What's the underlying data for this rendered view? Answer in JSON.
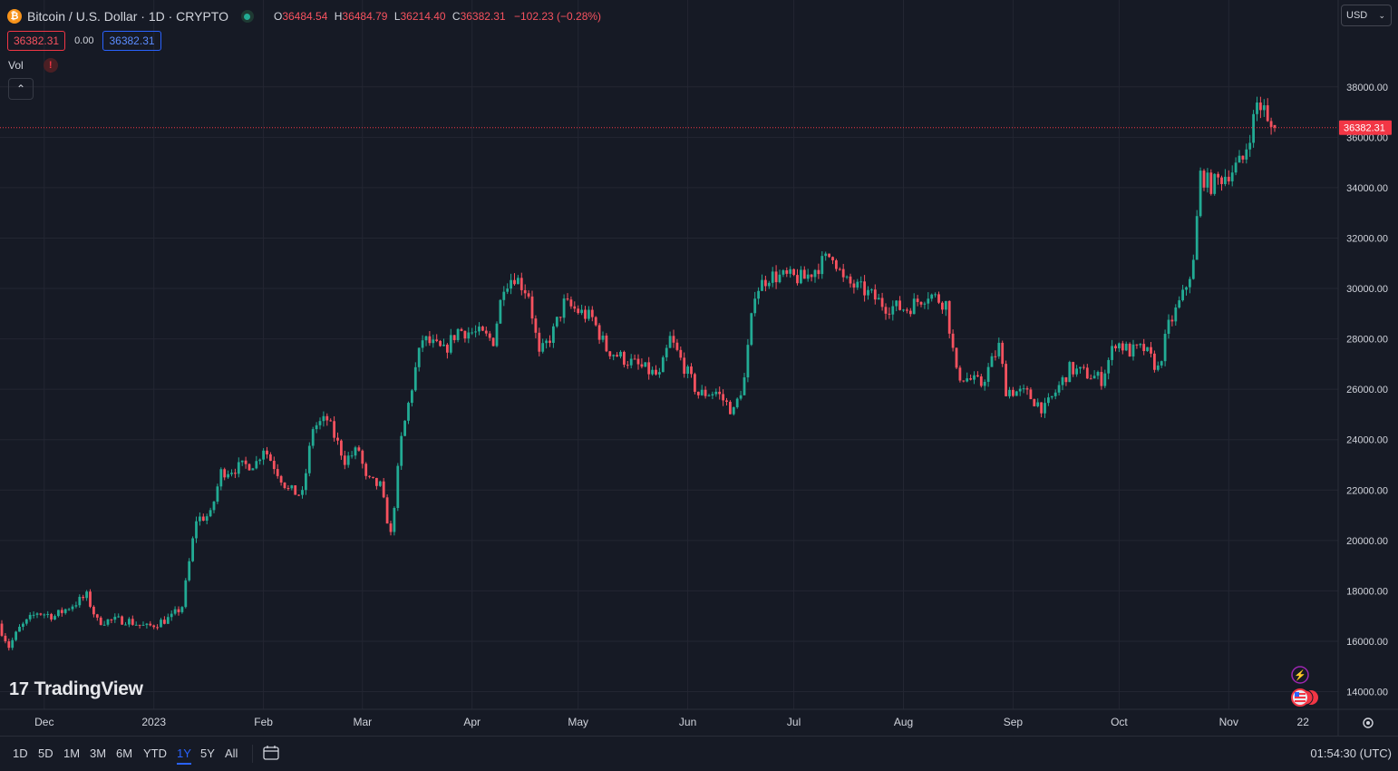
{
  "header": {
    "coin_glyph": "₿",
    "symbol_title": "Bitcoin / U.S. Dollar · 1D · CRYPTO",
    "ohlc": {
      "o_label": "O",
      "o_value": "36484.54",
      "h_label": "H",
      "h_value": "36484.79",
      "l_label": "L",
      "l_value": "36214.40",
      "c_label": "C",
      "c_value": "36382.31",
      "change": "−102.23 (−0.28%)"
    },
    "bid_price": "36382.31",
    "spread": "0.00",
    "ask_price": "36382.31",
    "vol_label": "Vol",
    "warning_glyph": "!",
    "collapse_glyph": "⌃"
  },
  "currency_select": {
    "value": "USD",
    "icon": "chevron-down-icon"
  },
  "price_axis": {
    "labels": [
      "14000.00",
      "16000.00",
      "18000.00",
      "20000.00",
      "22000.00",
      "24000.00",
      "26000.00",
      "28000.00",
      "30000.00",
      "32000.00",
      "34000.00",
      "36000.00",
      "38000.00"
    ],
    "last_price": "36382.31"
  },
  "time_axis": {
    "labels": [
      "Dec",
      "2023",
      "Feb",
      "Mar",
      "Apr",
      "May",
      "Jun",
      "Jul",
      "Aug",
      "Sep",
      "Oct",
      "Nov",
      "22"
    ]
  },
  "watermark": "TradingView",
  "bottom_bar": {
    "ranges": [
      "1D",
      "5D",
      "1M",
      "3M",
      "6M",
      "YTD",
      "1Y",
      "5Y",
      "All"
    ],
    "active_range": "1Y",
    "clock": "01:54:30 (UTC)"
  },
  "colors": {
    "up": "#22ab94",
    "down": "#f7525f",
    "background": "#161a25",
    "grid": "#232632",
    "last_price": "#f23645"
  },
  "chart_data": {
    "type": "candlestick",
    "y_range": [
      13300,
      39000
    ],
    "ylim_label_step": 2000,
    "anchors": [
      [
        "2022-11-19",
        16700
      ],
      [
        "2022-11-22",
        15800
      ],
      [
        "2022-11-25",
        16500
      ],
      [
        "2022-11-30",
        17150
      ],
      [
        "2022-12-05",
        17000
      ],
      [
        "2022-12-14",
        17800
      ],
      [
        "2022-12-17",
        16800
      ],
      [
        "2022-12-25",
        16850
      ],
      [
        "2022-12-31",
        16550
      ],
      [
        "2023-01-07",
        16950
      ],
      [
        "2023-01-10",
        17400
      ],
      [
        "2023-01-14",
        20850
      ],
      [
        "2023-01-18",
        21000
      ],
      [
        "2023-01-21",
        22700
      ],
      [
        "2023-01-31",
        23100
      ],
      [
        "2023-02-02",
        23700
      ],
      [
        "2023-02-09",
        22000
      ],
      [
        "2023-02-13",
        21800
      ],
      [
        "2023-02-16",
        24500
      ],
      [
        "2023-02-20",
        24800
      ],
      [
        "2023-02-25",
        23200
      ],
      [
        "2023-03-01",
        23600
      ],
      [
        "2023-03-03",
        22400
      ],
      [
        "2023-03-07",
        22150
      ],
      [
        "2023-03-10",
        20200
      ],
      [
        "2023-03-13",
        24000
      ],
      [
        "2023-03-17",
        26800
      ],
      [
        "2023-03-19",
        28000
      ],
      [
        "2023-03-25",
        27500
      ],
      [
        "2023-03-29",
        28350
      ],
      [
        "2023-04-04",
        28200
      ],
      [
        "2023-04-08",
        27950
      ],
      [
        "2023-04-11",
        30200
      ],
      [
        "2023-04-14",
        30500
      ],
      [
        "2023-04-18",
        29800
      ],
      [
        "2023-04-21",
        27300
      ],
      [
        "2023-04-25",
        28300
      ],
      [
        "2023-04-28",
        29400
      ],
      [
        "2023-05-06",
        28800
      ],
      [
        "2023-05-10",
        27600
      ],
      [
        "2023-05-15",
        27200
      ],
      [
        "2023-05-25",
        26500
      ],
      [
        "2023-05-28",
        28000
      ],
      [
        "2023-06-05",
        25800
      ],
      [
        "2023-06-10",
        25900
      ],
      [
        "2023-06-15",
        25100
      ],
      [
        "2023-06-18",
        26400
      ],
      [
        "2023-06-21",
        29900
      ],
      [
        "2023-06-25",
        30500
      ],
      [
        "2023-07-05",
        30400
      ],
      [
        "2023-07-13",
        31400
      ],
      [
        "2023-07-16",
        30300
      ],
      [
        "2023-07-22",
        29900
      ],
      [
        "2023-07-28",
        29300
      ],
      [
        "2023-08-03",
        29200
      ],
      [
        "2023-08-09",
        29800
      ],
      [
        "2023-08-14",
        29400
      ],
      [
        "2023-08-17",
        26600
      ],
      [
        "2023-08-24",
        26200
      ],
      [
        "2023-08-29",
        27700
      ],
      [
        "2023-08-31",
        26000
      ],
      [
        "2023-09-06",
        25800
      ],
      [
        "2023-09-11",
        25200
      ],
      [
        "2023-09-18",
        26800
      ],
      [
        "2023-09-23",
        26600
      ],
      [
        "2023-09-27",
        26400
      ],
      [
        "2023-10-01",
        27900
      ],
      [
        "2023-10-05",
        27500
      ],
      [
        "2023-10-09",
        27600
      ],
      [
        "2023-10-13",
        26800
      ],
      [
        "2023-10-16",
        28500
      ],
      [
        "2023-10-20",
        29700
      ],
      [
        "2023-10-23",
        31000
      ],
      [
        "2023-10-25",
        34500
      ],
      [
        "2023-10-28",
        34100
      ],
      [
        "2023-11-03",
        34700
      ],
      [
        "2023-11-06",
        35100
      ],
      [
        "2023-11-09",
        36700
      ],
      [
        "2023-11-10",
        37350
      ],
      [
        "2023-11-12",
        37100
      ],
      [
        "2023-11-13",
        36482
      ],
      [
        "2023-11-14",
        36382
      ]
    ],
    "last_candle": {
      "date": "2023-11-14",
      "open": 36484.54,
      "high": 36484.79,
      "low": 36214.4,
      "close": 36382.31
    }
  }
}
